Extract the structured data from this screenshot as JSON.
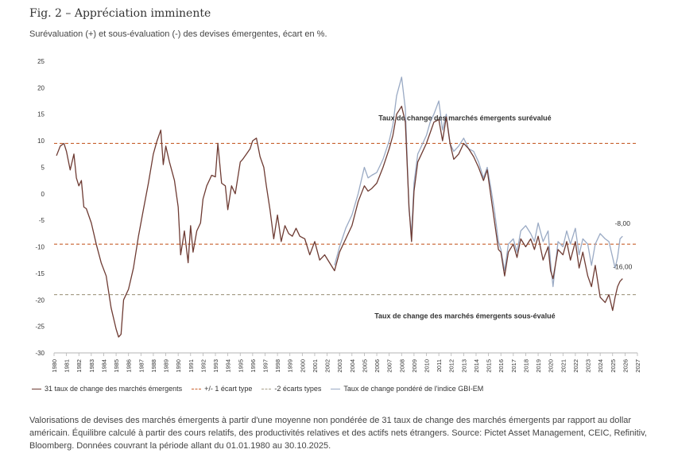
{
  "header": {
    "title": "Fig. 2 – Appréciation imminente",
    "subtitle": "Surévaluation (+) et sous-évaluation (-) des devises émergentes, écart en %."
  },
  "footer": {
    "source": "Valorisations de devises des marchés émergents à partir d'une moyenne non pondérée de 31 taux de change des marchés émergents par rapport au dollar américain. Équilibre calculé à partir des cours relatifs, des productivités relatives et des actifs nets étrangers. Source: Pictet Asset Management, CEIC, Refinitiv, Bloomberg. Données couvrant la période allant du 01.01.1980 au 30.10.2025."
  },
  "chart_data": {
    "type": "line",
    "title": "",
    "xlabel": "",
    "ylabel": "",
    "xlim": [
      1980,
      2027
    ],
    "ylim": [
      -30,
      25
    ],
    "y_ticks": [
      25,
      20,
      15,
      10,
      5,
      0,
      -5,
      -10,
      -15,
      -20,
      -25,
      -30
    ],
    "x_ticks": [
      "1980",
      "1981",
      "1982",
      "1983",
      "1984",
      "1985",
      "1986",
      "1987",
      "1988",
      "1989",
      "1990",
      "1991",
      "1992",
      "1993",
      "1994",
      "1995",
      "1996",
      "1997",
      "1998",
      "1999",
      "2000",
      "2001",
      "2002",
      "2003",
      "2004",
      "2005",
      "2006",
      "2007",
      "2008",
      "2009",
      "2010",
      "2011",
      "2012",
      "2013",
      "2014",
      "2015",
      "2016",
      "2017",
      "2018",
      "2019",
      "2020",
      "2021",
      "2022",
      "2023",
      "2024",
      "2025",
      "2026",
      "2027"
    ],
    "grid": false,
    "legend_position": "bottom",
    "reference_lines": [
      {
        "name": "+/- 1 écart type",
        "y": 9.5,
        "color": "#c8622f",
        "style": "dashed"
      },
      {
        "name": "+/- 1 écart type",
        "y": -9.5,
        "color": "#c8622f",
        "style": "dashed"
      },
      {
        "name": "-2 écarts types",
        "y": -19,
        "color": "#a8a08a",
        "style": "dashed"
      }
    ],
    "annotations": [
      {
        "text": "Taux de change des marchés émergents surévalué",
        "x": 2013.1,
        "y": 13.8,
        "anchor": "middle",
        "bold": true
      },
      {
        "text": "Taux de change des marchés émergents sous-évalué",
        "x": 2013.1,
        "y": -23.5,
        "anchor": "middle",
        "bold": true
      },
      {
        "text": "-8,00",
        "x": 2025.8,
        "y": -6,
        "anchor": "middle",
        "bold": false
      },
      {
        "text": "-16,00",
        "x": 2025.8,
        "y": -14.2,
        "anchor": "middle",
        "bold": false
      }
    ],
    "series": [
      {
        "name": "31 taux de change des marchés émergents",
        "color": "#6e3b33",
        "x": [
          1980.2,
          1980.5,
          1980.8,
          1981.0,
          1981.3,
          1981.6,
          1981.8,
          1982.0,
          1982.2,
          1982.4,
          1982.6,
          1983.0,
          1983.4,
          1983.8,
          1984.2,
          1984.6,
          1985.0,
          1985.2,
          1985.4,
          1985.6,
          1986.0,
          1986.4,
          1986.8,
          1987.2,
          1987.6,
          1988.0,
          1988.3,
          1988.6,
          1988.8,
          1989.0,
          1989.3,
          1989.7,
          1990.0,
          1990.2,
          1990.5,
          1990.8,
          1991.0,
          1991.2,
          1991.5,
          1991.8,
          1992.0,
          1992.3,
          1992.7,
          1993.0,
          1993.2,
          1993.5,
          1993.8,
          1994.0,
          1994.3,
          1994.6,
          1995.0,
          1995.2,
          1995.5,
          1995.8,
          1996.0,
          1996.3,
          1996.6,
          1996.9,
          1997.1,
          1997.4,
          1997.7,
          1998.0,
          1998.3,
          1998.6,
          1998.9,
          1999.2,
          1999.5,
          1999.8,
          2000.2,
          2000.6,
          2001.0,
          2001.4,
          2001.8,
          2002.2,
          2002.6,
          2003.0,
          2003.5,
          2004.0,
          2004.5,
          2005.0,
          2005.3,
          2005.6,
          2006.0,
          2006.5,
          2007.0,
          2007.3,
          2007.6,
          2008.0,
          2008.3,
          2008.6,
          2008.8,
          2009.0,
          2009.3,
          2009.6,
          2010.0,
          2010.3,
          2010.6,
          2011.0,
          2011.3,
          2011.6,
          2011.9,
          2012.2,
          2012.6,
          2013.0,
          2013.4,
          2013.8,
          2014.2,
          2014.6,
          2014.9,
          2015.2,
          2015.5,
          2015.8,
          2016.0,
          2016.3,
          2016.6,
          2017.0,
          2017.3,
          2017.6,
          2018.0,
          2018.4,
          2018.7,
          2019.0,
          2019.4,
          2019.8,
          2020.0,
          2020.2,
          2020.6,
          2021.0,
          2021.3,
          2021.6,
          2022.0,
          2022.3,
          2022.6,
          2023.0,
          2023.3,
          2023.6,
          2024.0,
          2024.4,
          2024.7,
          2025.0,
          2025.2,
          2025.4,
          2025.6,
          2025.8
        ],
        "y": [
          7.2,
          9.0,
          9.5,
          8.0,
          4.5,
          7.5,
          3.0,
          1.5,
          2.5,
          -2.5,
          -2.8,
          -5.5,
          -9.5,
          -13.0,
          -15.5,
          -21.5,
          -25.5,
          -27.0,
          -26.5,
          -20.0,
          -18.0,
          -14.0,
          -8.0,
          -3.0,
          2.0,
          7.5,
          10.0,
          12.0,
          5.5,
          9.0,
          6.0,
          2.5,
          -2.5,
          -11.5,
          -7.0,
          -13.0,
          -6.0,
          -11.0,
          -7.0,
          -5.5,
          -1.0,
          1.5,
          3.5,
          3.2,
          9.5,
          2.0,
          1.5,
          -3.0,
          1.5,
          0.0,
          6.0,
          6.5,
          7.5,
          8.5,
          10.0,
          10.5,
          7.0,
          5.0,
          1.5,
          -3.0,
          -8.5,
          -4.0,
          -9.0,
          -6.0,
          -7.5,
          -8.0,
          -6.5,
          -8.0,
          -8.5,
          -11.5,
          -9.0,
          -12.5,
          -11.5,
          -13.0,
          -14.5,
          -11.0,
          -8.5,
          -6.0,
          -1.5,
          1.5,
          0.5,
          1.0,
          2.0,
          5.0,
          8.5,
          11.0,
          15.0,
          16.5,
          13.5,
          -2.5,
          -9.0,
          0.5,
          6.0,
          7.5,
          9.5,
          11.5,
          13.5,
          14.0,
          10.0,
          14.5,
          9.5,
          6.5,
          7.5,
          9.5,
          8.5,
          7.0,
          5.0,
          2.5,
          4.5,
          -0.5,
          -5.5,
          -10.5,
          -11.0,
          -15.5,
          -11.0,
          -9.5,
          -12.0,
          -8.5,
          -10.0,
          -8.5,
          -10.5,
          -8.0,
          -12.5,
          -10.0,
          -14.5,
          -16.0,
          -10.5,
          -11.5,
          -9.0,
          -12.5,
          -9.0,
          -14.0,
          -11.0,
          -15.5,
          -17.5,
          -13.5,
          -19.5,
          -20.5,
          -19.0,
          -22.0,
          -19.5,
          -17.5,
          -16.5,
          -16.0
        ]
      },
      {
        "name": "Taux de change pondéré de l'indice GBI-EM",
        "color": "#9aaac4",
        "x": [
          2002.6,
          2003.0,
          2003.5,
          2004.0,
          2004.5,
          2005.0,
          2005.3,
          2005.6,
          2006.0,
          2006.5,
          2007.0,
          2007.3,
          2007.6,
          2008.0,
          2008.3,
          2008.6,
          2008.8,
          2009.0,
          2009.3,
          2009.6,
          2010.0,
          2010.3,
          2010.6,
          2011.0,
          2011.3,
          2011.6,
          2011.9,
          2012.2,
          2012.6,
          2013.0,
          2013.4,
          2013.8,
          2014.2,
          2014.6,
          2014.9,
          2015.2,
          2015.5,
          2015.8,
          2016.0,
          2016.3,
          2016.6,
          2017.0,
          2017.3,
          2017.6,
          2018.0,
          2018.4,
          2018.7,
          2019.0,
          2019.4,
          2019.8,
          2020.0,
          2020.2,
          2020.6,
          2021.0,
          2021.3,
          2021.6,
          2022.0,
          2022.3,
          2022.6,
          2023.0,
          2023.3,
          2023.6,
          2024.0,
          2024.4,
          2024.7,
          2025.0,
          2025.2,
          2025.4,
          2025.6,
          2025.8
        ],
        "y": [
          -13.5,
          -10.0,
          -6.5,
          -4.0,
          0.0,
          5.0,
          3.0,
          3.5,
          4.0,
          6.5,
          10.0,
          13.0,
          18.5,
          22.0,
          16.0,
          -3.0,
          -7.5,
          2.0,
          7.5,
          9.0,
          11.0,
          13.5,
          15.0,
          17.5,
          12.0,
          15.0,
          9.5,
          8.0,
          9.0,
          10.5,
          8.5,
          8.0,
          6.0,
          3.0,
          5.0,
          1.0,
          -3.5,
          -9.0,
          -10.5,
          -14.5,
          -9.5,
          -8.5,
          -11.0,
          -7.0,
          -6.0,
          -7.5,
          -9.0,
          -5.5,
          -9.0,
          -7.0,
          -13.0,
          -17.5,
          -9.0,
          -10.0,
          -7.0,
          -9.5,
          -6.5,
          -11.5,
          -8.5,
          -9.5,
          -13.5,
          -9.5,
          -7.5,
          -8.5,
          -9.0,
          -12.0,
          -14.0,
          -12.0,
          -8.5,
          -8.0
        ]
      }
    ]
  },
  "legend": {
    "items": [
      {
        "label": "31 taux de change des marchés émergents"
      },
      {
        "label": "+/- 1 écart type"
      },
      {
        "label": "-2 écarts types"
      },
      {
        "label": "Taux de change pondéré de l'indice GBI-EM"
      }
    ]
  }
}
